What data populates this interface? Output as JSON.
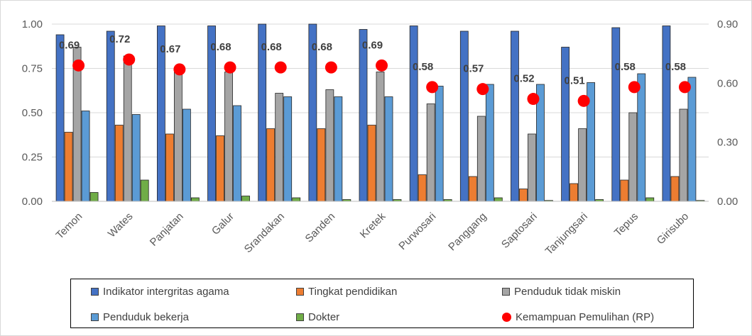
{
  "chart_data": {
    "type": "bar",
    "categories": [
      "Temon",
      "Wates",
      "Panjatan",
      "Galur",
      "Srandakan",
      "Sanden",
      "Kretek",
      "Purwosari",
      "Panggang",
      "Saptosari",
      "Tanjungsari",
      "Tepus",
      "Girisubo"
    ],
    "series": [
      {
        "name": "Indikator intergritas agama",
        "color": "#4472c4",
        "axis": "left",
        "values": [
          0.94,
          0.96,
          0.99,
          0.99,
          1.0,
          1.0,
          0.97,
          0.99,
          0.96,
          0.96,
          0.87,
          0.98,
          0.99
        ]
      },
      {
        "name": "Tingkat pendidikan",
        "color": "#ed7d31",
        "axis": "left",
        "values": [
          0.39,
          0.43,
          0.38,
          0.37,
          0.41,
          0.41,
          0.43,
          0.15,
          0.14,
          0.07,
          0.1,
          0.12,
          0.14
        ]
      },
      {
        "name": "Penduduk tidak miskin",
        "color": "#a5a5a5",
        "axis": "left",
        "values": [
          0.87,
          0.82,
          0.73,
          0.73,
          0.61,
          0.63,
          0.73,
          0.55,
          0.48,
          0.38,
          0.41,
          0.5,
          0.52
        ]
      },
      {
        "name": "Penduduk bekerja",
        "color": "#5b9bd5",
        "axis": "left",
        "values": [
          0.51,
          0.49,
          0.52,
          0.54,
          0.59,
          0.59,
          0.59,
          0.65,
          0.66,
          0.66,
          0.67,
          0.72,
          0.7
        ]
      },
      {
        "name": "Dokter",
        "color": "#70ad47",
        "axis": "left",
        "values": [
          0.05,
          0.12,
          0.02,
          0.03,
          0.02,
          0.01,
          0.01,
          0.01,
          0.02,
          0.005,
          0.01,
          0.02,
          0.005
        ]
      },
      {
        "name": "Kemampuan Pemulihan (RP)",
        "color": "#ff0000",
        "axis": "right",
        "marker": "dot",
        "values": [
          0.69,
          0.72,
          0.67,
          0.68,
          0.68,
          0.68,
          0.69,
          0.58,
          0.57,
          0.52,
          0.51,
          0.58,
          0.58
        ],
        "labels": [
          "0.69",
          "0.72",
          "0.67",
          "0.68",
          "0.68",
          "0.68",
          "0.69",
          "0.58",
          "0.57",
          "0.52",
          "0.51",
          "0.58",
          "0.58"
        ]
      }
    ],
    "left_axis": {
      "ylim": [
        0,
        1
      ],
      "ticks": [
        0,
        0.25,
        0.5,
        0.75,
        1
      ],
      "tick_labels": [
        "0.00",
        "0.25",
        "0.50",
        "0.75",
        "1.00"
      ]
    },
    "right_axis": {
      "ylim": [
        0,
        0.9
      ],
      "ticks": [
        0,
        0.3,
        0.6,
        0.9
      ],
      "tick_labels": [
        "0.00",
        "0.30",
        "0.60",
        "0.90"
      ]
    },
    "title": "",
    "xlabel": "",
    "ylabel": "",
    "grid": "horizontal",
    "legend_position": "bottom"
  },
  "legend": {
    "items": [
      {
        "label": "Indikator intergritas agama",
        "color": "#4472c4",
        "shape": "square"
      },
      {
        "label": "Tingkat pendidikan",
        "color": "#ed7d31",
        "shape": "square"
      },
      {
        "label": "Penduduk tidak miskin",
        "color": "#a5a5a5",
        "shape": "square"
      },
      {
        "label": "Penduduk bekerja",
        "color": "#5b9bd5",
        "shape": "square"
      },
      {
        "label": "Dokter",
        "color": "#70ad47",
        "shape": "square"
      },
      {
        "label": "Kemampuan Pemulihan (RP)",
        "color": "#ff0000",
        "shape": "dot"
      }
    ]
  }
}
